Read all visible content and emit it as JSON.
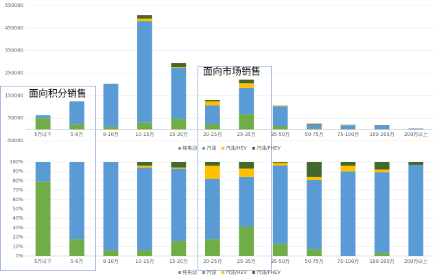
{
  "annotations": [
    "面向积分销售",
    "面向市场销售"
  ],
  "chart_data": [
    {
      "type": "bar",
      "stacked": true,
      "grid": true,
      "legend": "bottom",
      "categories": [
        "5万以下",
        "5-8万",
        "8-10万",
        "10-15万",
        "15-20万",
        "20-25万",
        "25-35万",
        "35-50万",
        "50-75万",
        "75-100万",
        "100-200万",
        "200万以上"
      ],
      "series": [
        {
          "name": "纯电动",
          "color": "#70ad47",
          "values": [
            50000,
            22000,
            12000,
            30000,
            47000,
            23000,
            68000,
            14000,
            2000,
            0,
            600,
            0
          ]
        },
        {
          "name": "汽油",
          "color": "#5b9bd5",
          "values": [
            13000,
            103000,
            191000,
            450000,
            226000,
            84000,
            117000,
            88000,
            18000,
            19000,
            17000,
            3900
          ]
        },
        {
          "name": "汽油/HEV",
          "color": "#ffc000",
          "values": [
            0,
            0,
            0,
            12000,
            3000,
            18000,
            20000,
            3000,
            1000,
            1500,
            600,
            0
          ]
        },
        {
          "name": "汽油/PHEV",
          "color": "#43682b",
          "values": [
            0,
            0,
            0,
            15000,
            18000,
            5000,
            16000,
            1000,
            4000,
            500,
            1600,
            100
          ]
        }
      ],
      "ylim": [
        -50000,
        550000
      ],
      "yticks": [
        -50000,
        50000,
        150000,
        250000,
        350000,
        450000,
        550000
      ]
    },
    {
      "type": "bar",
      "stacked": true,
      "grid": true,
      "legend": "bottom",
      "categories": [
        "5万以下",
        "5-8万",
        "8-10万",
        "10-15万",
        "15-20万",
        "20-25万",
        "25-35万",
        "35-50万",
        "50-75万",
        "75-100万",
        "100-200万",
        "200万以上"
      ],
      "series": [
        {
          "name": "纯电动",
          "color": "#70ad47",
          "values": [
            79,
            18,
            6,
            6,
            16,
            18,
            31,
            13,
            7,
            0,
            3,
            0
          ]
        },
        {
          "name": "汽油",
          "color": "#5b9bd5",
          "values": [
            21,
            82,
            94,
            88,
            77,
            64,
            53,
            83,
            74,
            90,
            86,
            97
          ]
        },
        {
          "name": "汽油/HEV",
          "color": "#ffc000",
          "values": [
            0,
            0,
            0,
            2,
            1,
            14,
            9,
            3,
            3,
            6,
            3,
            0
          ]
        },
        {
          "name": "汽油/PHEV",
          "color": "#43682b",
          "values": [
            0,
            0,
            0,
            4,
            6,
            4,
            7,
            1,
            16,
            4,
            8,
            3
          ]
        }
      ],
      "ylim": [
        0,
        100
      ],
      "yticks": [
        {
          "value": 0,
          "label": "0%"
        },
        {
          "value": 10,
          "label": "10%"
        },
        {
          "value": 20,
          "label": "20%"
        },
        {
          "value": 30,
          "label": "30%"
        },
        {
          "value": 40,
          "label": "40%"
        },
        {
          "value": 50,
          "label": "50%"
        },
        {
          "value": 60,
          "label": "60%"
        },
        {
          "value": 70,
          "label": "70%"
        },
        {
          "value": 80,
          "label": "80%"
        },
        {
          "value": 90,
          "label": "90%"
        },
        {
          "value": 100,
          "label": "100%"
        }
      ]
    }
  ]
}
